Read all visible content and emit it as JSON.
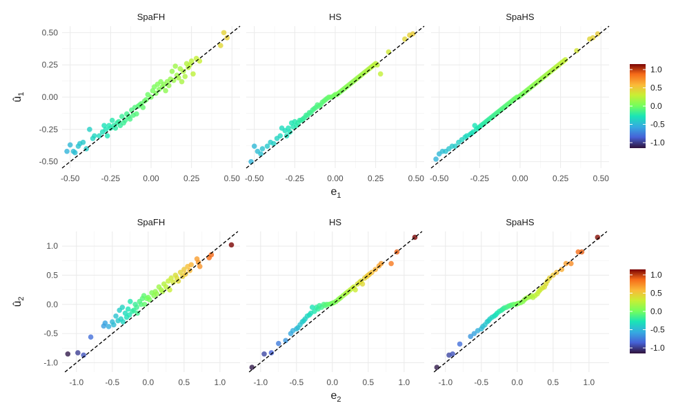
{
  "chart_data": [
    {
      "type": "scatter",
      "row": "top",
      "xlabel": "e",
      "xlabel_sub": "1",
      "ylabel": "û",
      "ylabel_sub": "1",
      "xlim": [
        -0.55,
        0.55
      ],
      "ylim": [
        -0.55,
        0.55
      ],
      "xticks": [
        -0.5,
        -0.25,
        0,
        0.25,
        0.5
      ],
      "xtick_labels": [
        "-0.50",
        "-0.25",
        "0.00",
        "0.25",
        "0.50"
      ],
      "yticks": [
        -0.5,
        -0.25,
        0,
        0.25,
        0.5
      ],
      "ytick_labels": [
        "-0.50",
        "-0.25",
        "0.00",
        "0.25",
        "0.50"
      ],
      "reference_line": "y = x (dashed)",
      "grid": true,
      "color_by": "e",
      "colorbar": {
        "ticks": [
          1.0,
          0.5,
          0.0,
          -0.5,
          -1.0
        ],
        "tick_labels": [
          "1.0",
          "0.5",
          "0.0",
          "-0.5",
          "-1.0"
        ],
        "range": [
          -1.15,
          1.15
        ],
        "colormap": "turbo"
      },
      "panels": [
        {
          "title": "SpaFH",
          "x": [
            -0.52,
            -0.5,
            -0.48,
            -0.47,
            -0.45,
            -0.44,
            -0.42,
            -0.4,
            -0.38,
            -0.36,
            -0.35,
            -0.32,
            -0.3,
            -0.29,
            -0.28,
            -0.27,
            -0.26,
            -0.25,
            -0.24,
            -0.23,
            -0.22,
            -0.21,
            -0.2,
            -0.19,
            -0.18,
            -0.17,
            -0.16,
            -0.15,
            -0.14,
            -0.13,
            -0.12,
            -0.11,
            -0.1,
            -0.09,
            -0.08,
            -0.07,
            -0.06,
            -0.05,
            -0.04,
            -0.03,
            -0.02,
            0.0,
            0.01,
            0.02,
            0.03,
            0.04,
            0.05,
            0.06,
            0.07,
            0.08,
            0.09,
            0.1,
            0.11,
            0.12,
            0.13,
            0.14,
            0.15,
            0.16,
            0.17,
            0.18,
            0.19,
            0.2,
            0.21,
            0.22,
            0.23,
            0.24,
            0.25,
            0.26,
            0.28,
            0.3,
            0.43,
            0.45,
            0.47
          ],
          "y": [
            -0.42,
            -0.37,
            -0.42,
            -0.43,
            -0.38,
            -0.36,
            -0.35,
            -0.4,
            -0.25,
            -0.32,
            -0.3,
            -0.3,
            -0.27,
            -0.22,
            -0.25,
            -0.3,
            -0.22,
            -0.24,
            -0.18,
            -0.22,
            -0.24,
            -0.2,
            -0.19,
            -0.22,
            -0.15,
            -0.2,
            -0.18,
            -0.13,
            -0.15,
            -0.17,
            -0.1,
            -0.14,
            -0.08,
            -0.13,
            -0.07,
            -0.06,
            -0.05,
            -0.08,
            -0.03,
            -0.02,
            0.02,
            0.0,
            0.05,
            0.08,
            0.03,
            0.1,
            0.06,
            0.12,
            0.08,
            0.1,
            0.05,
            0.12,
            0.09,
            0.14,
            0.2,
            0.13,
            0.24,
            0.17,
            0.15,
            0.22,
            0.12,
            0.2,
            0.16,
            0.26,
            0.23,
            0.25,
            0.28,
            0.18,
            0.3,
            0.28,
            0.4,
            0.5,
            0.46
          ]
        },
        {
          "title": "HS",
          "x": [
            -0.52,
            -0.5,
            -0.48,
            -0.46,
            -0.45,
            -0.42,
            -0.4,
            -0.38,
            -0.36,
            -0.34,
            -0.33,
            -0.31,
            -0.3,
            -0.29,
            -0.28,
            -0.27,
            -0.26,
            -0.25,
            -0.24,
            -0.23,
            -0.22,
            -0.21,
            -0.2,
            -0.19,
            -0.18,
            -0.17,
            -0.16,
            -0.15,
            -0.14,
            -0.13,
            -0.12,
            -0.11,
            -0.1,
            -0.09,
            -0.08,
            -0.07,
            -0.06,
            -0.05,
            -0.04,
            -0.03,
            -0.02,
            -0.01,
            0.0,
            0.01,
            0.02,
            0.03,
            0.04,
            0.05,
            0.06,
            0.07,
            0.08,
            0.09,
            0.1,
            0.11,
            0.12,
            0.13,
            0.14,
            0.15,
            0.16,
            0.17,
            0.18,
            0.19,
            0.2,
            0.21,
            0.22,
            0.23,
            0.24,
            0.25,
            0.26,
            0.28,
            0.33,
            0.43,
            0.46,
            0.48
          ],
          "y": [
            -0.5,
            -0.38,
            -0.42,
            -0.44,
            -0.4,
            -0.38,
            -0.35,
            -0.36,
            -0.32,
            -0.3,
            -0.24,
            -0.26,
            -0.3,
            -0.24,
            -0.27,
            -0.2,
            -0.23,
            -0.19,
            -0.22,
            -0.2,
            -0.18,
            -0.18,
            -0.17,
            -0.16,
            -0.14,
            -0.14,
            -0.12,
            -0.12,
            -0.1,
            -0.09,
            -0.08,
            -0.06,
            -0.07,
            -0.06,
            -0.04,
            -0.03,
            -0.02,
            -0.01,
            0.0,
            0.0,
            0.0,
            0.01,
            0.02,
            0.02,
            0.03,
            0.04,
            0.05,
            0.06,
            0.07,
            0.08,
            0.09,
            0.1,
            0.11,
            0.12,
            0.13,
            0.14,
            0.15,
            0.16,
            0.17,
            0.18,
            0.19,
            0.2,
            0.21,
            0.22,
            0.23,
            0.24,
            0.25,
            0.26,
            0.25,
            0.18,
            0.35,
            0.45,
            0.48,
            0.49
          ]
        },
        {
          "title": "SpaHS",
          "x": [
            -0.52,
            -0.5,
            -0.48,
            -0.46,
            -0.44,
            -0.42,
            -0.4,
            -0.38,
            -0.36,
            -0.34,
            -0.33,
            -0.31,
            -0.3,
            -0.29,
            -0.28,
            -0.27,
            -0.26,
            -0.25,
            -0.24,
            -0.23,
            -0.22,
            -0.21,
            -0.2,
            -0.19,
            -0.18,
            -0.17,
            -0.16,
            -0.15,
            -0.14,
            -0.13,
            -0.12,
            -0.11,
            -0.1,
            -0.09,
            -0.08,
            -0.07,
            -0.06,
            -0.05,
            -0.04,
            -0.03,
            -0.02,
            -0.01,
            0.0,
            0.01,
            0.02,
            0.03,
            0.04,
            0.05,
            0.06,
            0.07,
            0.08,
            0.09,
            0.1,
            0.11,
            0.12,
            0.13,
            0.14,
            0.15,
            0.16,
            0.17,
            0.18,
            0.19,
            0.2,
            0.21,
            0.22,
            0.23,
            0.24,
            0.25,
            0.26,
            0.27,
            0.28,
            0.35,
            0.43,
            0.45,
            0.48
          ],
          "y": [
            -0.48,
            -0.44,
            -0.42,
            -0.42,
            -0.4,
            -0.38,
            -0.38,
            -0.35,
            -0.33,
            -0.31,
            -0.3,
            -0.29,
            -0.28,
            -0.27,
            -0.22,
            -0.25,
            -0.24,
            -0.23,
            -0.22,
            -0.21,
            -0.2,
            -0.19,
            -0.18,
            -0.17,
            -0.16,
            -0.15,
            -0.14,
            -0.13,
            -0.12,
            -0.11,
            -0.1,
            -0.09,
            -0.08,
            -0.07,
            -0.06,
            -0.05,
            -0.04,
            -0.03,
            -0.02,
            -0.01,
            0.0,
            0.0,
            0.01,
            0.02,
            0.03,
            0.04,
            0.05,
            0.06,
            0.07,
            0.08,
            0.09,
            0.1,
            0.11,
            0.12,
            0.13,
            0.14,
            0.15,
            0.16,
            0.17,
            0.18,
            0.19,
            0.2,
            0.21,
            0.22,
            0.23,
            0.24,
            0.25,
            0.26,
            0.27,
            0.28,
            0.29,
            0.36,
            0.45,
            0.46,
            0.49
          ]
        }
      ]
    },
    {
      "type": "scatter",
      "row": "bottom",
      "xlabel": "e",
      "xlabel_sub": "2",
      "ylabel": "û",
      "ylabel_sub": "2",
      "xlim": [
        -1.2,
        1.28
      ],
      "ylim": [
        -1.16,
        1.25
      ],
      "xticks": [
        -1.0,
        -0.5,
        0,
        0.5,
        1.0
      ],
      "xtick_labels": [
        "-1.0",
        "-0.5",
        "0.0",
        "0.5",
        "1.0"
      ],
      "yticks": [
        -1.0,
        -0.5,
        0,
        0.5,
        1.0
      ],
      "ytick_labels": [
        "-1.0",
        "-0.5",
        "0.0",
        "0.5",
        "1.0"
      ],
      "reference_line": "y = x (dashed)",
      "grid": true,
      "color_by": "e",
      "colorbar": {
        "ticks": [
          1.0,
          0.5,
          0.0,
          -0.5,
          -1.0
        ],
        "tick_labels": [
          "1.0",
          "0.5",
          "0.0",
          "-0.5",
          "-1.0"
        ],
        "range": [
          -1.15,
          1.15
        ],
        "colormap": "turbo"
      },
      "panels": [
        {
          "title": "SpaFH",
          "x": [
            -1.12,
            -0.98,
            -0.9,
            -0.8,
            -0.62,
            -0.6,
            -0.55,
            -0.5,
            -0.48,
            -0.45,
            -0.42,
            -0.4,
            -0.38,
            -0.36,
            -0.35,
            -0.32,
            -0.3,
            -0.28,
            -0.26,
            -0.25,
            -0.22,
            -0.2,
            -0.18,
            -0.16,
            -0.15,
            -0.12,
            -0.1,
            -0.08,
            -0.06,
            -0.05,
            -0.02,
            0.0,
            0.02,
            0.05,
            0.08,
            0.1,
            0.12,
            0.15,
            0.18,
            0.2,
            0.22,
            0.25,
            0.28,
            0.3,
            0.32,
            0.35,
            0.38,
            0.4,
            0.42,
            0.45,
            0.48,
            0.5,
            0.52,
            0.55,
            0.58,
            0.6,
            0.68,
            0.7,
            0.72,
            0.85,
            0.88,
            1.16
          ],
          "y": [
            -0.85,
            -0.83,
            -0.87,
            -0.56,
            -0.37,
            -0.32,
            -0.38,
            -0.3,
            -0.35,
            -0.2,
            -0.28,
            -0.1,
            -0.25,
            -0.05,
            -0.3,
            -0.15,
            -0.22,
            -0.08,
            -0.18,
            0.05,
            -0.12,
            -0.1,
            0.0,
            -0.05,
            -0.15,
            0.05,
            0.0,
            0.1,
            0.15,
            0.0,
            0.1,
            0.12,
            0.08,
            0.2,
            0.15,
            0.22,
            0.18,
            0.3,
            0.25,
            0.22,
            0.35,
            0.3,
            0.4,
            0.25,
            0.45,
            0.38,
            0.5,
            0.45,
            0.4,
            0.55,
            0.48,
            0.6,
            0.52,
            0.65,
            0.58,
            0.68,
            0.78,
            0.72,
            0.65,
            0.8,
            0.85,
            1.02
          ]
        },
        {
          "title": "HS",
          "x": [
            -1.12,
            -0.95,
            -0.85,
            -0.75,
            -0.65,
            -0.58,
            -0.55,
            -0.5,
            -0.48,
            -0.45,
            -0.42,
            -0.4,
            -0.38,
            -0.35,
            -0.32,
            -0.3,
            -0.28,
            -0.25,
            -0.22,
            -0.2,
            -0.18,
            -0.15,
            -0.12,
            -0.1,
            -0.08,
            -0.05,
            -0.02,
            0.0,
            0.02,
            0.05,
            0.08,
            0.1,
            0.12,
            0.15,
            0.18,
            0.2,
            0.22,
            0.25,
            0.28,
            0.3,
            0.32,
            0.35,
            0.38,
            0.4,
            0.42,
            0.45,
            0.48,
            0.5,
            0.52,
            0.55,
            0.6,
            0.65,
            0.68,
            0.82,
            0.9,
            1.15
          ],
          "y": [
            -1.08,
            -0.85,
            -0.83,
            -0.67,
            -0.62,
            -0.5,
            -0.45,
            -0.42,
            -0.4,
            -0.35,
            -0.3,
            -0.28,
            -0.25,
            -0.2,
            -0.18,
            -0.15,
            -0.05,
            -0.12,
            -0.05,
            -0.08,
            -0.02,
            -0.05,
            0.0,
            -0.02,
            0.0,
            0.0,
            0.01,
            0.02,
            0.03,
            0.05,
            0.08,
            0.1,
            0.12,
            0.15,
            0.18,
            0.2,
            0.22,
            0.25,
            0.28,
            0.3,
            0.25,
            0.35,
            0.38,
            0.4,
            0.35,
            0.45,
            0.48,
            0.5,
            0.52,
            0.55,
            0.6,
            0.66,
            0.7,
            0.7,
            0.9,
            1.15
          ]
        },
        {
          "title": "SpaHS",
          "x": [
            -1.12,
            -0.95,
            -0.9,
            -0.8,
            -0.65,
            -0.6,
            -0.55,
            -0.5,
            -0.48,
            -0.45,
            -0.42,
            -0.4,
            -0.38,
            -0.35,
            -0.32,
            -0.3,
            -0.28,
            -0.25,
            -0.22,
            -0.2,
            -0.18,
            -0.15,
            -0.12,
            -0.1,
            -0.08,
            -0.05,
            -0.02,
            0.0,
            0.02,
            0.05,
            0.08,
            0.1,
            0.12,
            0.15,
            0.18,
            0.2,
            0.22,
            0.25,
            0.28,
            0.3,
            0.32,
            0.35,
            0.38,
            0.4,
            0.42,
            0.45,
            0.5,
            0.55,
            0.62,
            0.68,
            0.75,
            0.85,
            0.9,
            1.12
          ],
          "y": [
            -1.08,
            -0.87,
            -0.85,
            -0.68,
            -0.55,
            -0.5,
            -0.45,
            -0.42,
            -0.38,
            -0.35,
            -0.3,
            -0.28,
            -0.25,
            -0.22,
            -0.2,
            -0.18,
            -0.15,
            -0.12,
            -0.1,
            -0.08,
            -0.06,
            -0.05,
            -0.03,
            -0.02,
            -0.01,
            0.0,
            0.0,
            0.01,
            0.02,
            0.03,
            0.05,
            0.08,
            0.1,
            0.12,
            0.13,
            0.15,
            0.12,
            0.15,
            0.18,
            0.22,
            0.25,
            0.28,
            0.3,
            0.35,
            0.4,
            0.45,
            0.5,
            0.55,
            0.6,
            0.7,
            0.7,
            0.9,
            0.9,
            1.15
          ]
        }
      ]
    }
  ]
}
